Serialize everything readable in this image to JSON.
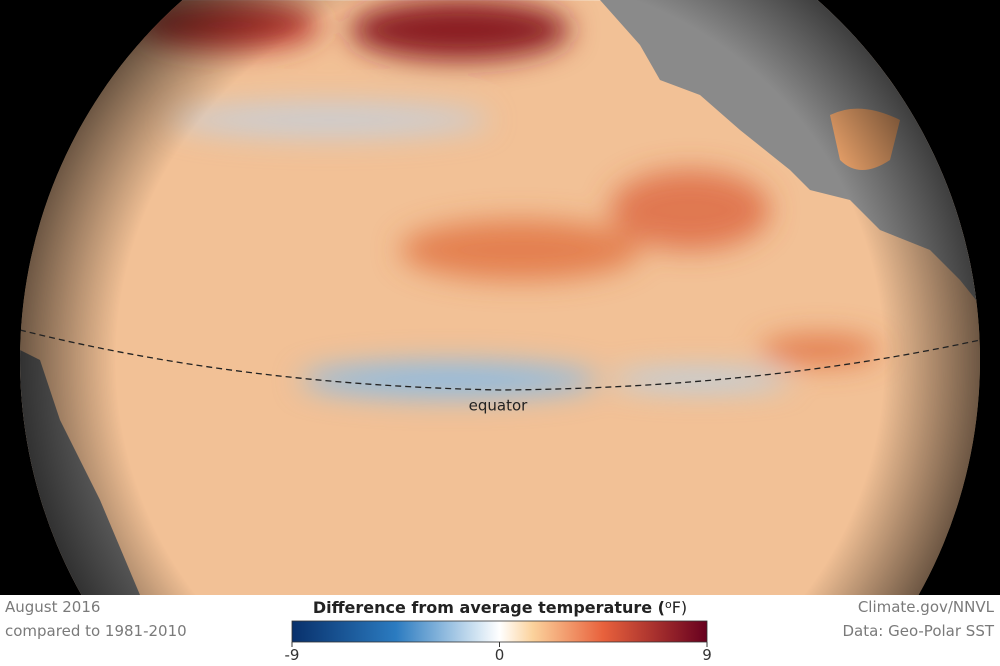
{
  "map": {
    "equator_label": "equator"
  },
  "footer": {
    "date": "August 2016",
    "baseline": "compared to 1981-2010",
    "credit": "Climate.gov/NNVL",
    "source": "Data: Geo-Polar SST"
  },
  "legend": {
    "title": "Difference from average temperature (",
    "degree": "o",
    "unit": "F)",
    "lim": [
      -9,
      9
    ],
    "ticks": [
      -9,
      0,
      9
    ]
  }
}
